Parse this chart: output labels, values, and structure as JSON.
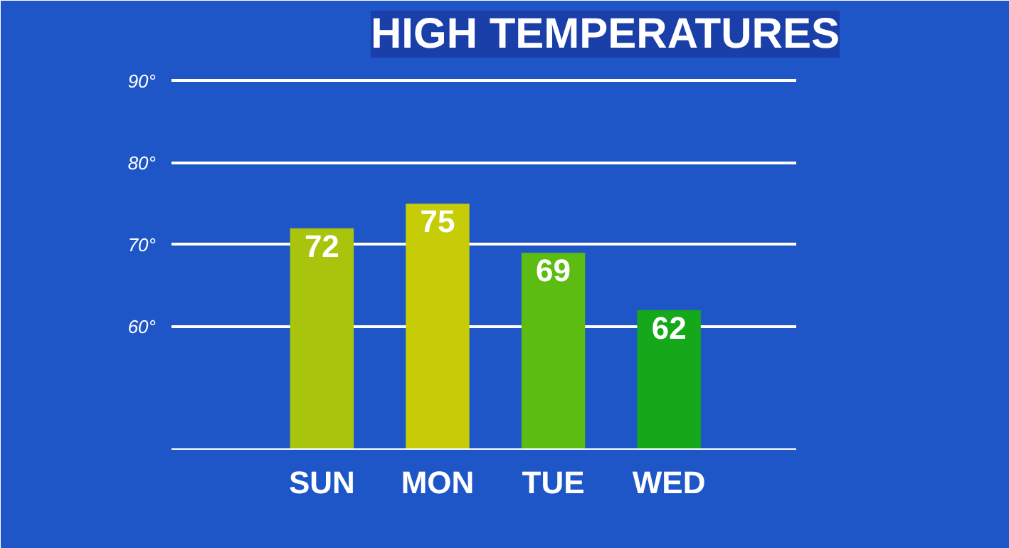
{
  "chart_data": {
    "type": "bar",
    "title": "HIGH TEMPERATURES",
    "categories": [
      "SUN",
      "MON",
      "TUE",
      "WED"
    ],
    "values": [
      72,
      75,
      69,
      62
    ],
    "colors": [
      "#a9c40c",
      "#c6cc06",
      "#5cbc12",
      "#15a81a"
    ],
    "data_labels": true,
    "ylim": [
      45,
      92
    ],
    "yticks": [
      {
        "value": 60,
        "label": "60°"
      },
      {
        "value": 70,
        "label": "70°"
      },
      {
        "value": 80,
        "label": "80°"
      },
      {
        "value": 90,
        "label": "90°"
      }
    ],
    "grid": "y"
  }
}
